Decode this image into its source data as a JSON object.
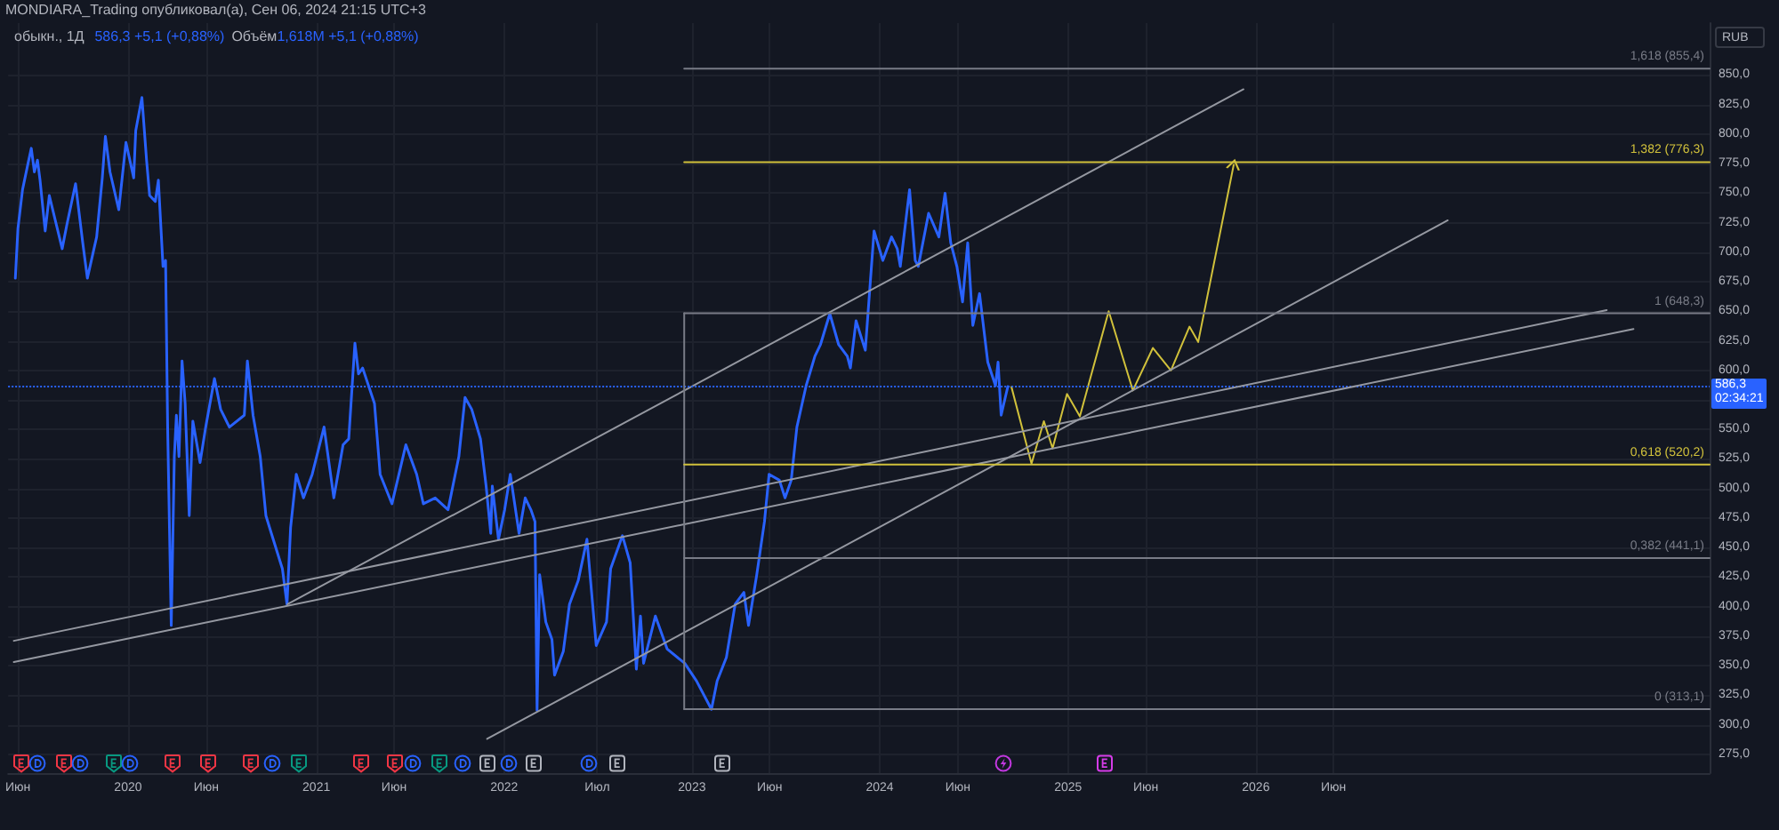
{
  "chart_data": {
    "type": "line",
    "title": "MONDIARA_Trading опубликовал(а), Сен 06, 2024 21:15 UTC+3",
    "subtitle": "обыкн., 1Д",
    "ylabel": "RUB",
    "annotations": [
      "586,3 +5,1 (+0,88%)",
      "Объём",
      "1,618M +5,1 (+0,88%)",
      "02:34:21"
    ],
    "xlim": [
      "2019-05-13",
      "2028-06-01"
    ],
    "ylim": [
      259,
      894
    ],
    "xticks": [
      {
        "value": "2019-06-01",
        "label": "Июн"
      },
      {
        "value": "2020-01-01",
        "label": "2020"
      },
      {
        "value": "2020-06-01",
        "label": "Июн"
      },
      {
        "value": "2021-01-01",
        "label": "2021"
      },
      {
        "value": "2021-06-01",
        "label": "Июн"
      },
      {
        "value": "2022-01-01",
        "label": "2022"
      },
      {
        "value": "2022-07-01",
        "label": "Июл"
      },
      {
        "value": "2023-01-01",
        "label": "2023"
      },
      {
        "value": "2023-06-01",
        "label": "Июн"
      },
      {
        "value": "2024-01-01",
        "label": "2024"
      },
      {
        "value": "2024-06-01",
        "label": "Июн"
      },
      {
        "value": "2025-01-01",
        "label": "2025"
      },
      {
        "value": "2025-06-01",
        "label": "Июн"
      },
      {
        "value": "2026-01-01",
        "label": "2026"
      },
      {
        "value": "2026-06-01",
        "label": "Июн"
      }
    ],
    "yticks": [
      {
        "value": 275,
        "label": "275,0"
      },
      {
        "value": 300,
        "label": "300,0"
      },
      {
        "value": 325,
        "label": "325,0"
      },
      {
        "value": 350,
        "label": "350,0"
      },
      {
        "value": 375,
        "label": "375,0"
      },
      {
        "value": 400,
        "label": "400,0"
      },
      {
        "value": 425,
        "label": "425,0"
      },
      {
        "value": 450,
        "label": "450,0"
      },
      {
        "value": 475,
        "label": "475,0"
      },
      {
        "value": 500,
        "label": "500,0"
      },
      {
        "value": 525,
        "label": "525,0"
      },
      {
        "value": 550,
        "label": "550,0"
      },
      {
        "value": 575,
        "label": null
      },
      {
        "value": 600,
        "label": "600,0"
      },
      {
        "value": 625,
        "label": "625,0"
      },
      {
        "value": 650,
        "label": "650,0"
      },
      {
        "value": 675,
        "label": "675,0"
      },
      {
        "value": 700,
        "label": "700,0"
      },
      {
        "value": 725,
        "label": "725,0"
      },
      {
        "value": 750,
        "label": "750,0"
      },
      {
        "value": 775,
        "label": "775,0"
      },
      {
        "value": 800,
        "label": "800,0"
      },
      {
        "value": 825,
        "label": "825,0"
      },
      {
        "value": 850,
        "label": "850,0"
      }
    ],
    "grid": true,
    "legend": false,
    "marker": "none",
    "ref_lines": [
      {
        "axis": "y",
        "value": 586.3,
        "label": "586,3",
        "color": "#2962ff",
        "line_style": "dotted"
      }
    ],
    "series": [
      {
        "color": "#2962ff",
        "x": [
          "2019-05-27",
          "2019-06-01",
          "2019-06-10",
          "2019-06-21",
          "2019-06-27",
          "2019-07-03",
          "2019-07-09",
          "2019-07-14",
          "2019-07-24",
          "2019-08-01",
          "2019-08-26",
          "2019-09-04",
          "2019-09-21",
          "2019-10-05",
          "2019-10-14",
          "2019-11-01",
          "2019-11-12",
          "2019-11-18",
          "2019-11-27",
          "2019-12-14",
          "2019-12-28",
          "2020-01-12",
          "2020-01-16",
          "2020-01-28",
          "2020-02-06",
          "2020-02-12",
          "2020-02-23",
          "2020-02-29",
          "2020-03-09",
          "2020-03-14",
          "2020-03-18",
          "2020-03-25",
          "2020-03-31",
          "2020-04-04",
          "2020-04-09",
          "2020-04-15",
          "2020-04-21",
          "2020-04-29",
          "2020-05-06",
          "2020-05-20",
          "2020-05-31",
          "2020-06-17",
          "2020-06-29",
          "2020-07-16",
          "2020-08-14",
          "2020-08-20",
          "2020-08-31",
          "2020-09-14",
          "2020-09-25",
          "2020-10-02",
          "2020-10-27",
          "2020-11-05",
          "2020-11-12",
          "2020-11-23",
          "2020-12-07",
          "2020-12-24",
          "2021-01-16",
          "2021-02-04",
          "2021-02-22",
          "2021-03-05",
          "2021-03-17",
          "2021-03-24",
          "2021-04-01",
          "2021-04-24",
          "2021-05-05",
          "2021-05-28",
          "2021-06-24",
          "2021-07-15",
          "2021-07-28",
          "2021-08-20",
          "2021-09-14",
          "2021-10-05",
          "2021-10-17",
          "2021-10-30",
          "2021-11-16",
          "2021-11-27",
          "2021-12-06",
          "2021-12-09",
          "2021-12-21",
          "2022-01-02",
          "2022-01-13",
          "2022-01-30",
          "2022-02-11",
          "2022-02-22",
          "2022-03-02",
          "2022-03-06",
          "2022-03-11",
          "2022-03-23",
          "2022-04-04",
          "2022-04-09",
          "2022-04-26",
          "2022-05-08",
          "2022-05-25",
          "2022-06-11",
          "2022-06-29",
          "2022-07-19",
          "2022-07-27",
          "2022-08-19",
          "2022-09-03",
          "2022-09-15",
          "2022-09-23",
          "2022-09-29",
          "2022-10-22",
          "2022-11-14",
          "2022-12-18",
          "2023-01-10",
          "2023-02-08",
          "2023-02-19",
          "2023-03-09",
          "2023-03-26",
          "2023-04-12",
          "2023-04-21",
          "2023-05-07",
          "2023-05-22",
          "2023-05-31",
          "2023-06-20",
          "2023-07-01",
          "2023-07-13",
          "2023-07-24",
          "2023-08-11",
          "2023-08-28",
          "2023-09-08",
          "2023-09-26",
          "2023-10-13",
          "2023-10-30",
          "2023-11-05",
          "2023-11-16",
          "2023-12-04",
          "2023-12-21",
          "2024-01-07",
          "2024-01-24",
          "2024-02-04",
          "2024-02-10",
          "2024-02-28",
          "2024-03-10",
          "2024-03-16",
          "2024-04-05",
          "2024-04-25",
          "2024-05-07",
          "2024-05-18",
          "2024-05-30",
          "2024-06-10",
          "2024-06-20",
          "2024-06-30",
          "2024-07-13",
          "2024-07-29",
          "2024-08-13",
          "2024-08-18",
          "2024-08-24",
          "2024-09-06"
        ],
        "values": [
          678,
          720,
          753,
          776,
          788,
          768,
          778,
          761,
          718,
          748,
          703,
          723,
          758,
          708,
          678,
          713,
          763,
          798,
          768,
          736,
          793,
          763,
          803,
          831,
          778,
          748,
          743,
          761,
          688,
          693,
          552,
          384,
          527,
          562,
          527,
          608,
          572,
          477,
          557,
          522,
          552,
          593,
          567,
          552,
          562,
          608,
          562,
          527,
          477,
          467,
          432,
          402,
          467,
          512,
          492,
          512,
          552,
          492,
          537,
          542,
          623,
          597,
          602,
          572,
          512,
          487,
          537,
          512,
          487,
          492,
          482,
          527,
          577,
          567,
          542,
          502,
          462,
          502,
          457,
          482,
          512,
          462,
          492,
          482,
          472,
          312,
          427,
          387,
          372,
          342,
          362,
          402,
          422,
          457,
          367,
          387,
          432,
          460,
          437,
          347,
          392,
          352,
          392,
          364,
          352,
          337,
          313,
          337,
          357,
          402,
          412,
          384,
          427,
          472,
          512,
          507,
          492,
          507,
          552,
          587,
          612,
          622,
          648,
          622,
          612,
          602,
          642,
          617,
          718,
          693,
          713,
          703,
          688,
          753,
          693,
          688,
          733,
          713,
          750,
          708,
          688,
          658,
          708,
          638,
          665,
          607,
          587,
          607,
          562,
          586.3
        ]
      },
      {
        "color": "#d1c13b",
        "x": [
          "2024-09-13",
          "2024-10-22",
          "2024-11-15",
          "2024-12-02",
          "2024-12-30",
          "2025-01-24",
          "2025-03-21",
          "2025-05-07",
          "2025-06-15",
          "2025-07-20",
          "2025-08-25",
          "2025-09-11",
          "2025-11-19"
        ],
        "values": [
          586,
          521,
          557,
          534,
          580,
          561,
          650,
          583,
          619,
          600,
          637,
          624,
          774
        ]
      },
      {
        "color": "#9598a1",
        "x": [
          "2020-11-06",
          "2025-12-08"
        ],
        "values": [
          402,
          838
        ]
      },
      {
        "color": "#9598a1",
        "x": [
          "2021-11-29",
          "2027-01-09"
        ],
        "values": [
          288,
          727
        ]
      },
      {
        "color": "#9598a1",
        "x": [
          "2019-05-24",
          "2027-11-14"
        ],
        "values": [
          371,
          651
        ]
      },
      {
        "color": "#9598a1",
        "x": [
          "2019-05-24",
          "2028-01-05"
        ],
        "values": [
          353,
          635
        ]
      },
      {
        "color": "#787b86",
        "x": [
          "2022-12-17",
          "2022-12-17"
        ],
        "values": [
          313.1,
          648.3
        ]
      },
      {
        "name": "1,618 (855,4)",
        "color": "#787b86",
        "x": [
          "2022-12-17",
          "2028-06-01"
        ],
        "values": [
          855.4,
          855.4
        ]
      },
      {
        "name": "1,382 (776,3)",
        "color": "#d1c13b",
        "x": [
          "2022-12-17",
          "2028-06-01"
        ],
        "values": [
          776.3,
          776.3
        ]
      },
      {
        "name": "1 (648,3)",
        "color": "#787b86",
        "x": [
          "2022-12-17",
          "2028-06-01"
        ],
        "values": [
          648.3,
          648.3
        ]
      },
      {
        "name": "0,618 (520,2)",
        "color": "#d1c13b",
        "x": [
          "2022-12-17",
          "2028-06-01"
        ],
        "values": [
          520.2,
          520.2
        ]
      },
      {
        "name": "0,382 (441,1)",
        "color": "#787b86",
        "x": [
          "2022-12-17",
          "2028-06-01"
        ],
        "values": [
          441.1,
          441.1
        ]
      },
      {
        "name": "0 (313,1)",
        "color": "#787b86",
        "x": [
          "2022-12-17",
          "2028-06-01"
        ],
        "values": [
          313.1,
          313.1
        ]
      }
    ]
  }
}
